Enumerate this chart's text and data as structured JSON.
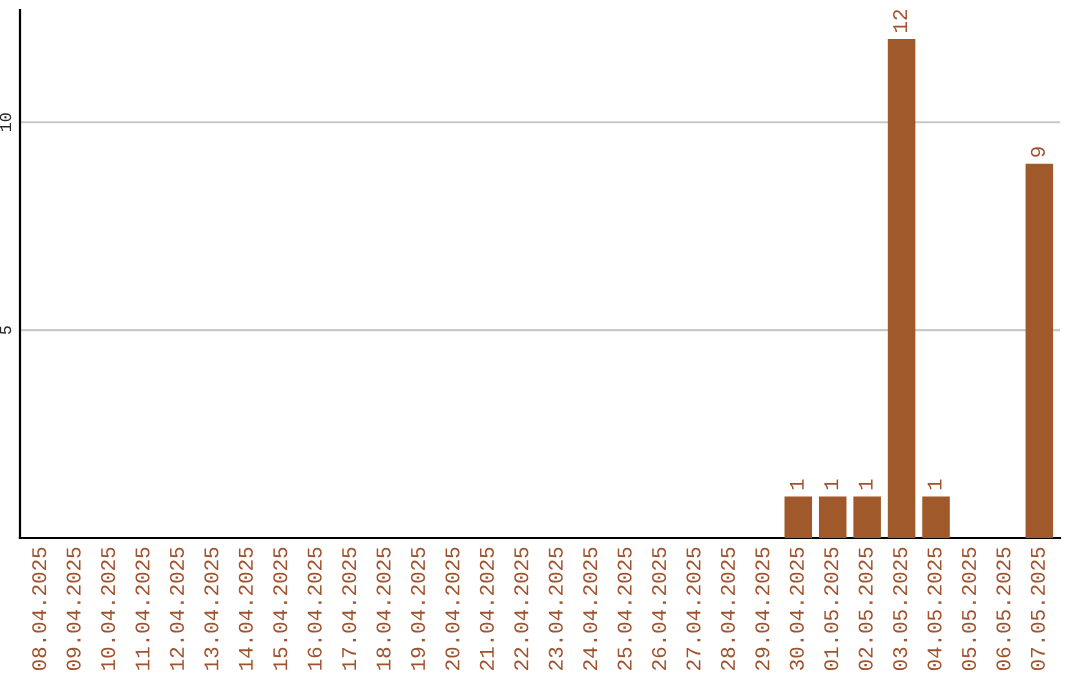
{
  "chart_data": {
    "type": "bar",
    "categories": [
      "08.04.2025",
      "09.04.2025",
      "10.04.2025",
      "11.04.2025",
      "12.04.2025",
      "13.04.2025",
      "14.04.2025",
      "15.04.2025",
      "16.04.2025",
      "17.04.2025",
      "18.04.2025",
      "19.04.2025",
      "20.04.2025",
      "21.04.2025",
      "22.04.2025",
      "23.04.2025",
      "24.04.2025",
      "25.04.2025",
      "26.04.2025",
      "27.04.2025",
      "28.04.2025",
      "29.04.2025",
      "30.04.2025",
      "01.05.2025",
      "02.05.2025",
      "03.05.2025",
      "04.05.2025",
      "05.05.2025",
      "06.05.2025",
      "07.05.2025"
    ],
    "values": [
      0,
      0,
      0,
      0,
      0,
      0,
      0,
      0,
      0,
      0,
      0,
      0,
      0,
      0,
      0,
      0,
      0,
      0,
      0,
      0,
      0,
      0,
      1,
      1,
      1,
      12,
      1,
      0,
      0,
      9
    ],
    "value_labels": [
      null,
      null,
      null,
      null,
      null,
      null,
      null,
      null,
      null,
      null,
      null,
      null,
      null,
      null,
      null,
      null,
      null,
      null,
      null,
      null,
      null,
      null,
      "1",
      "1",
      "1",
      "12",
      "1",
      null,
      null,
      "9"
    ],
    "color": "#a0592a",
    "ylim": [
      0,
      12.7
    ],
    "yticks": [
      5,
      10
    ],
    "grid": "y"
  }
}
